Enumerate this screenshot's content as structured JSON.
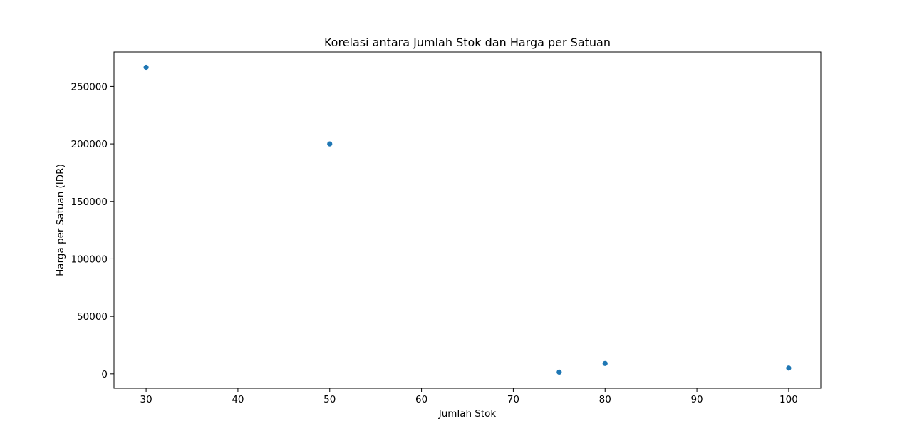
{
  "chart_data": {
    "type": "scatter",
    "title": "Korelasi antara Jumlah Stok dan Harga per Satuan",
    "xlabel": "Jumlah Stok",
    "ylabel": "Harga per Satuan (IDR)",
    "xlim": [
      26.5,
      103.5
    ],
    "ylim": [
      -12500,
      280000
    ],
    "xticks": [
      30,
      40,
      50,
      60,
      70,
      80,
      90,
      100
    ],
    "yticks": [
      0,
      50000,
      100000,
      150000,
      200000,
      250000
    ],
    "xtick_labels": [
      "30",
      "40",
      "50",
      "60",
      "70",
      "80",
      "90",
      "100"
    ],
    "ytick_labels": [
      "0",
      "50000",
      "100000",
      "150000",
      "200000",
      "250000"
    ],
    "grid": false,
    "marker_color": "#1f77b4",
    "series": [
      {
        "points": [
          {
            "x": 30,
            "y": 266667
          },
          {
            "x": 50,
            "y": 200000
          },
          {
            "x": 75,
            "y": 1500
          },
          {
            "x": 80,
            "y": 9000
          },
          {
            "x": 100,
            "y": 5000
          }
        ]
      }
    ]
  }
}
